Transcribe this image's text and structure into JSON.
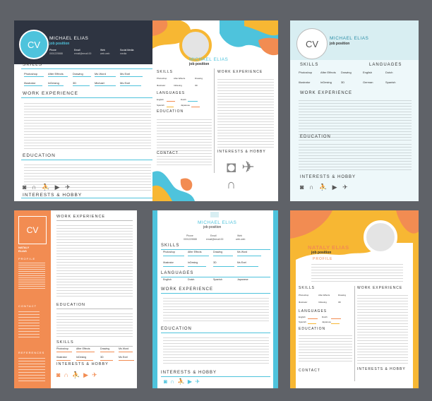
{
  "colors": {
    "background": "#5f6268",
    "dark_header": "#2e3441",
    "blue": "#4ec3dc",
    "orange": "#f28c52",
    "yellow": "#f7b733",
    "light_blue": "#d8eef2"
  },
  "common": {
    "cv": "CV",
    "name": "MICHAEL ELIAS",
    "job": "job position",
    "skills_title": "SKILLS",
    "work_title": "WORK EXPERIENCE",
    "education_title": "EDUCATION",
    "interests_title": "INTERESTS & HOBBY",
    "languages_title": "LANGUAGES",
    "contact_title": "CONTACT",
    "profile_title": "PROFILE",
    "references_title": "REFERENCES",
    "skills": [
      "Photoshop",
      "After Effects",
      "Drawing",
      "Ms Word",
      "Illustrator",
      "InDesing",
      "3D",
      "Ms Exel"
    ],
    "languages": [
      "English",
      "Dutch",
      "Spanish",
      "Japanese"
    ],
    "contact_heads": [
      "Phone",
      "Email",
      "Web",
      "Social Media"
    ],
    "contact_vals": [
      "0001225588",
      "email@email.00",
      "web.web",
      "media"
    ]
  },
  "card1": {
    "skills": [
      "Photoshop",
      "After Effects",
      "Drawing",
      "Ms Word",
      "Ms Exel",
      "Illustrator",
      "InDesing",
      "3D",
      "Michael",
      "Ms Exel"
    ]
  },
  "card2": {
    "skills": [
      "Photoshop",
      "After Effects",
      "Drawing",
      "Illustrator",
      "InDesing",
      "3D"
    ]
  },
  "card3": {
    "skills": [
      "Photoshop",
      "After Effects",
      "Drawing",
      "English",
      "Dutch",
      "Illustrator",
      "InDesing",
      "3D",
      "German",
      "Spanish"
    ]
  },
  "card4": {
    "name_line1": "NATALY",
    "name_line2": "ELIAS",
    "skills": [
      "Photoshop",
      "After Effects",
      "Drawing",
      "Ms Word",
      "Illustrator",
      "InDesing",
      "3D",
      "Ms Exel"
    ]
  },
  "card5": {
    "skills": [
      "Photoshop",
      "After Effects",
      "Drawing",
      "Ms Word",
      "Illustrator",
      "InDesing",
      "3D",
      "Ms Exel"
    ]
  },
  "card6": {
    "name": "NATALY ELIAS",
    "skills": [
      "Photoshop",
      "After Effects",
      "Drawing",
      "Ms Word",
      "Illustrator",
      "InDesing",
      "3D",
      "Ms Exel"
    ]
  },
  "icons": [
    "camera-icon",
    "headphones-icon",
    "running-icon",
    "video-camera-icon",
    "airplane-icon"
  ]
}
